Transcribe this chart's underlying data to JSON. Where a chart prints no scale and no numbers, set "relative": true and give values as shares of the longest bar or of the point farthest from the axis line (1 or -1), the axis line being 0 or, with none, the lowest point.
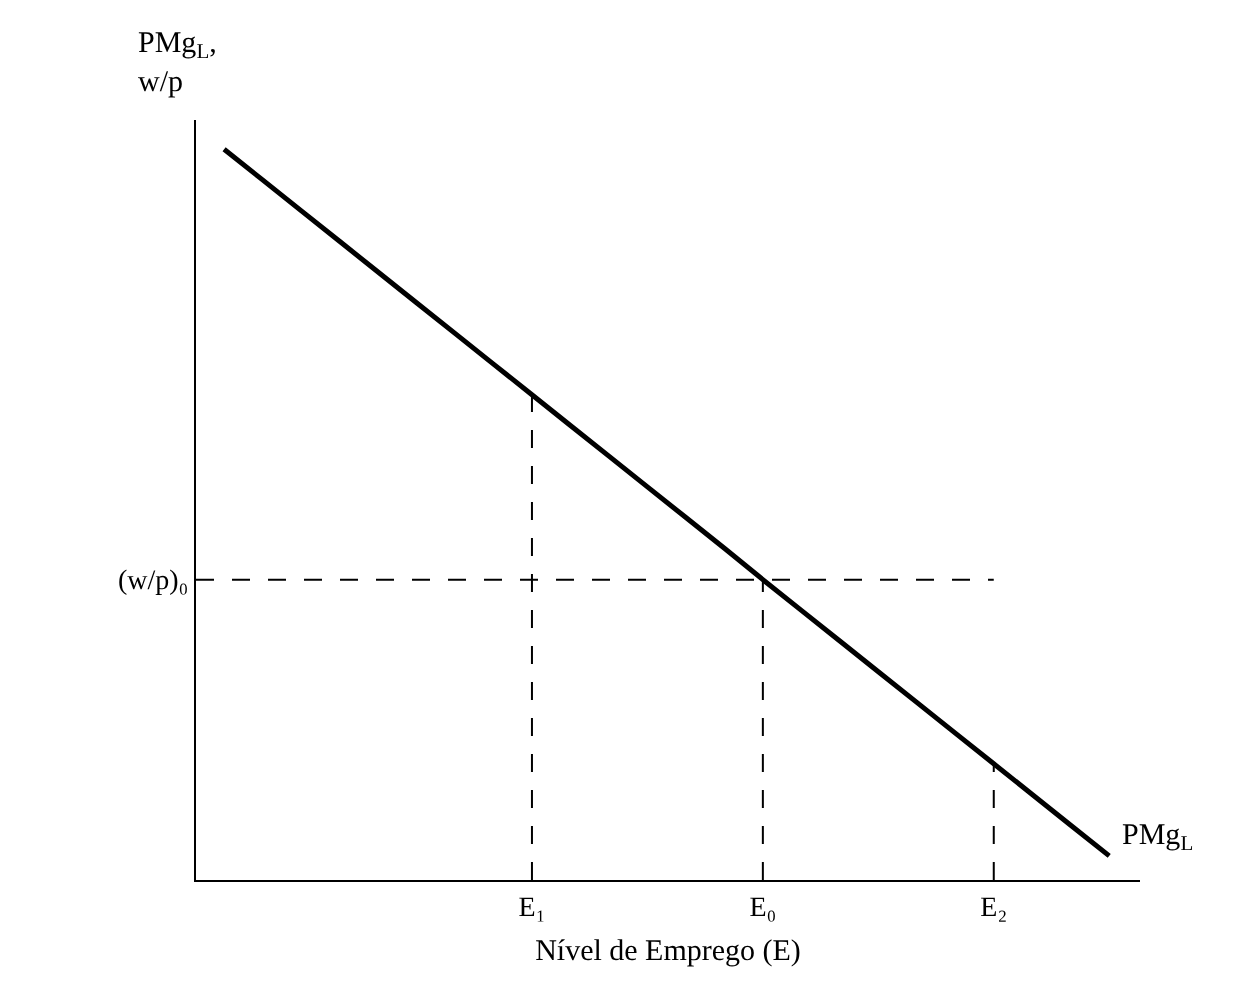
{
  "chart_data": {
    "type": "line",
    "relative": true,
    "xlabel": "Nível de Emprego (E)",
    "ylabel": "PMg$_{L}$,\nw/p",
    "categories": [
      null,
      null,
      null,
      null,
      null,
      null,
      null,
      null,
      "E₁",
      null,
      null,
      null,
      null,
      null,
      "E₀",
      null,
      null,
      null,
      null,
      null,
      "E₂",
      null,
      null,
      null
    ],
    "series": [
      {
        "name": "PMg$_{L}$",
        "color": "#000000",
        "values": [
          1,
          0.958,
          0.916,
          0.874,
          0.832,
          0.79,
          0.748,
          0.706,
          0.664,
          0.622,
          0.58,
          0.538,
          0.496,
          0.454,
          0.411,
          0.369,
          0.327,
          0.285,
          0.243,
          0.201,
          0.159,
          0.117,
          0.075,
          0.033
        ]
      }
    ],
    "ref_lines": [
      {
        "axis": "y",
        "value": 0.411,
        "label": "(w/p)₀",
        "line_style": "dashed"
      },
      {
        "axis": "x",
        "value": "E₁",
        "line_style": "dashed"
      },
      {
        "axis": "x",
        "value": "E₀",
        "line_style": "dashed"
      },
      {
        "axis": "x",
        "value": "E₂",
        "line_style": "dashed"
      }
    ],
    "grid": false,
    "legend": false,
    "marker": "none",
    "line_style": "solid"
  }
}
